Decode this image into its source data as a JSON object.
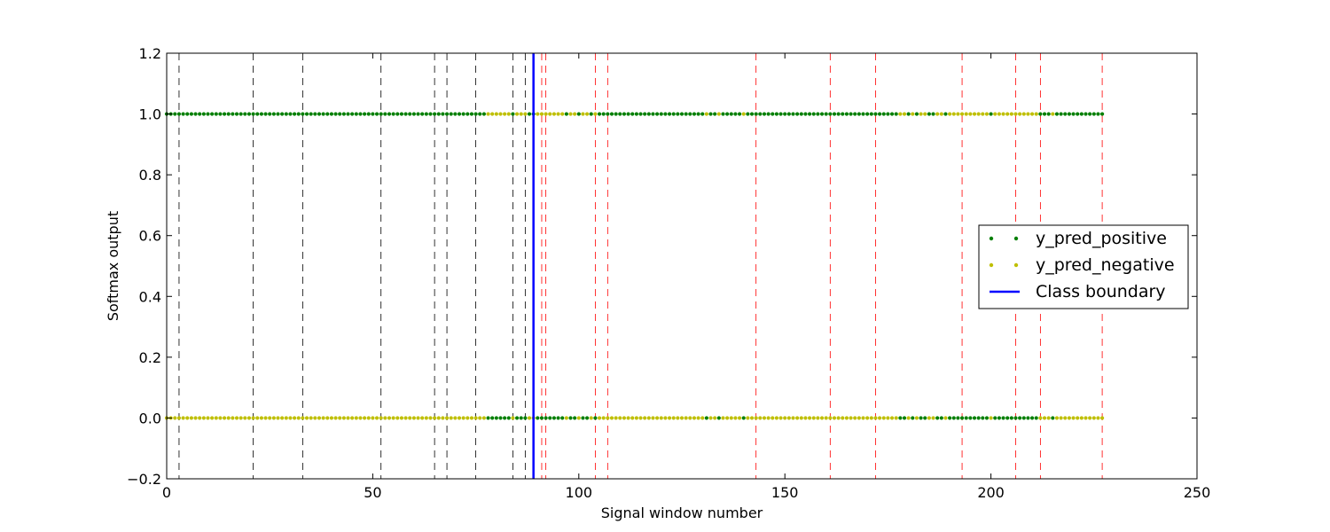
{
  "chart_data": {
    "type": "scatter",
    "xlabel": "Signal window number",
    "ylabel": "Softmax output",
    "xlim": [
      0,
      250
    ],
    "ylim": [
      -0.2,
      1.2
    ],
    "xticks": [
      0,
      50,
      100,
      150,
      200,
      250
    ],
    "yticks": [
      -0.2,
      0.0,
      0.2,
      0.4,
      0.6,
      0.8,
      1.0,
      1.2
    ],
    "xtick_labels": [
      "0",
      "50",
      "100",
      "150",
      "200",
      "250"
    ],
    "ytick_labels": [
      "−0.2",
      "0.0",
      "0.2",
      "0.4",
      "0.6",
      "0.8",
      "1.0",
      "1.2"
    ],
    "grid": false,
    "legend_position": "right",
    "n_windows": 228,
    "series": [
      {
        "name": "y_pred_positive",
        "color": "#007f00",
        "marker": "dot"
      },
      {
        "name": "y_pred_negative",
        "color": "#bfbf00",
        "marker": "dot"
      }
    ],
    "negative_class_windows": [
      78,
      79,
      80,
      81,
      82,
      83,
      85,
      86,
      87,
      90,
      91,
      92,
      93,
      94,
      95,
      96,
      98,
      99,
      101,
      102,
      104,
      131,
      134,
      140,
      178,
      179,
      181,
      183,
      184,
      187,
      188,
      190,
      191,
      192,
      193,
      194,
      195,
      196,
      197,
      198,
      199,
      201,
      202,
      203,
      204,
      205,
      206,
      207,
      208,
      209,
      210,
      211,
      215
    ],
    "class_boundary": {
      "name": "Class boundary",
      "x": 89,
      "color": "#0000ff"
    },
    "boundary_lines": [
      {
        "x": 3,
        "color": "#000000"
      },
      {
        "x": 21,
        "color": "#000000"
      },
      {
        "x": 33,
        "color": "#000000"
      },
      {
        "x": 52,
        "color": "#000000"
      },
      {
        "x": 65,
        "color": "#000000"
      },
      {
        "x": 68,
        "color": "#000000"
      },
      {
        "x": 75,
        "color": "#000000"
      },
      {
        "x": 84,
        "color": "#000000"
      },
      {
        "x": 87,
        "color": "#000000"
      },
      {
        "x": 91,
        "color": "#ff0000"
      },
      {
        "x": 92,
        "color": "#ff0000"
      },
      {
        "x": 104,
        "color": "#ff0000"
      },
      {
        "x": 107,
        "color": "#ff0000"
      },
      {
        "x": 143,
        "color": "#ff0000"
      },
      {
        "x": 161,
        "color": "#ff0000"
      },
      {
        "x": 172,
        "color": "#ff0000"
      },
      {
        "x": 193,
        "color": "#ff0000"
      },
      {
        "x": 206,
        "color": "#ff0000"
      },
      {
        "x": 212,
        "color": "#ff0000"
      },
      {
        "x": 227,
        "color": "#ff0000"
      }
    ]
  }
}
